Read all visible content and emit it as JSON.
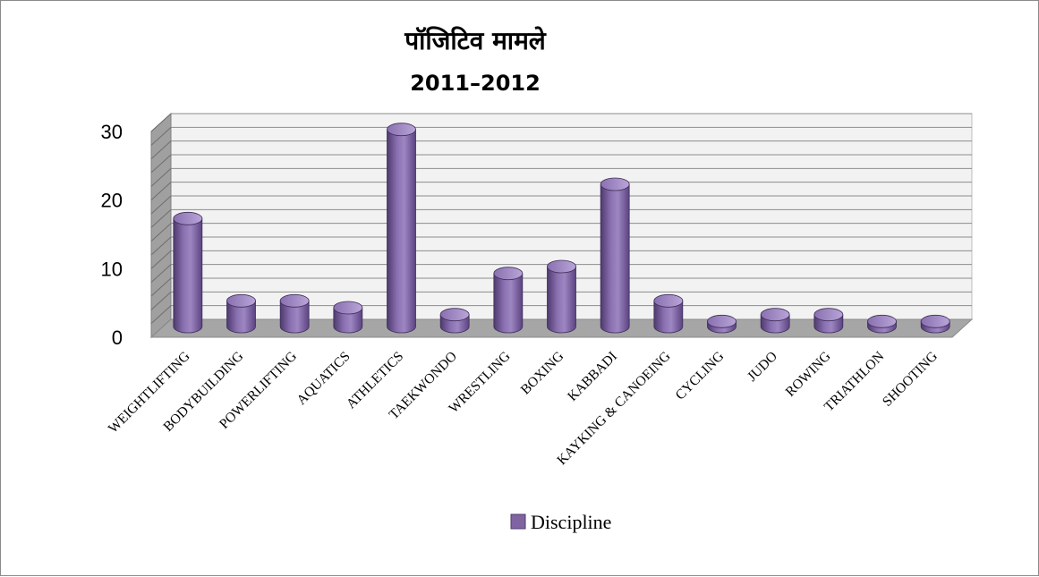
{
  "chart_data": {
    "type": "bar",
    "title": "पॉजिटिव मामले",
    "subtitle": "2011–2012",
    "categories": [
      "WEIGHTLIFTING",
      "BODYBUILDING",
      "POWERLIFTING",
      "AQUATICS",
      "ATHLETICS",
      "TAEKWONDO",
      "WRESTLING",
      "BOXING",
      "KABBADI",
      "KAYKING & CANOEING",
      "CYCLING",
      "JUDO",
      "ROWING",
      "TRIATHLON",
      "SHOOTING"
    ],
    "series": [
      {
        "name": "Discipline",
        "values": [
          16,
          4,
          4,
          3,
          29,
          2,
          8,
          9,
          21,
          4,
          1,
          2,
          2,
          1,
          1
        ]
      }
    ],
    "yticks": [
      0,
      10,
      20,
      30
    ],
    "ylim": [
      0,
      30
    ],
    "grid": true,
    "legend_position": "bottom",
    "colors": {
      "bar": "#8064a2",
      "bar_dark": "#4e3a6e",
      "bar_light": "#a48cc6",
      "floor": "#a6a6a6",
      "wall": "#f2f2f2",
      "grid": "#8c8c8c"
    }
  }
}
